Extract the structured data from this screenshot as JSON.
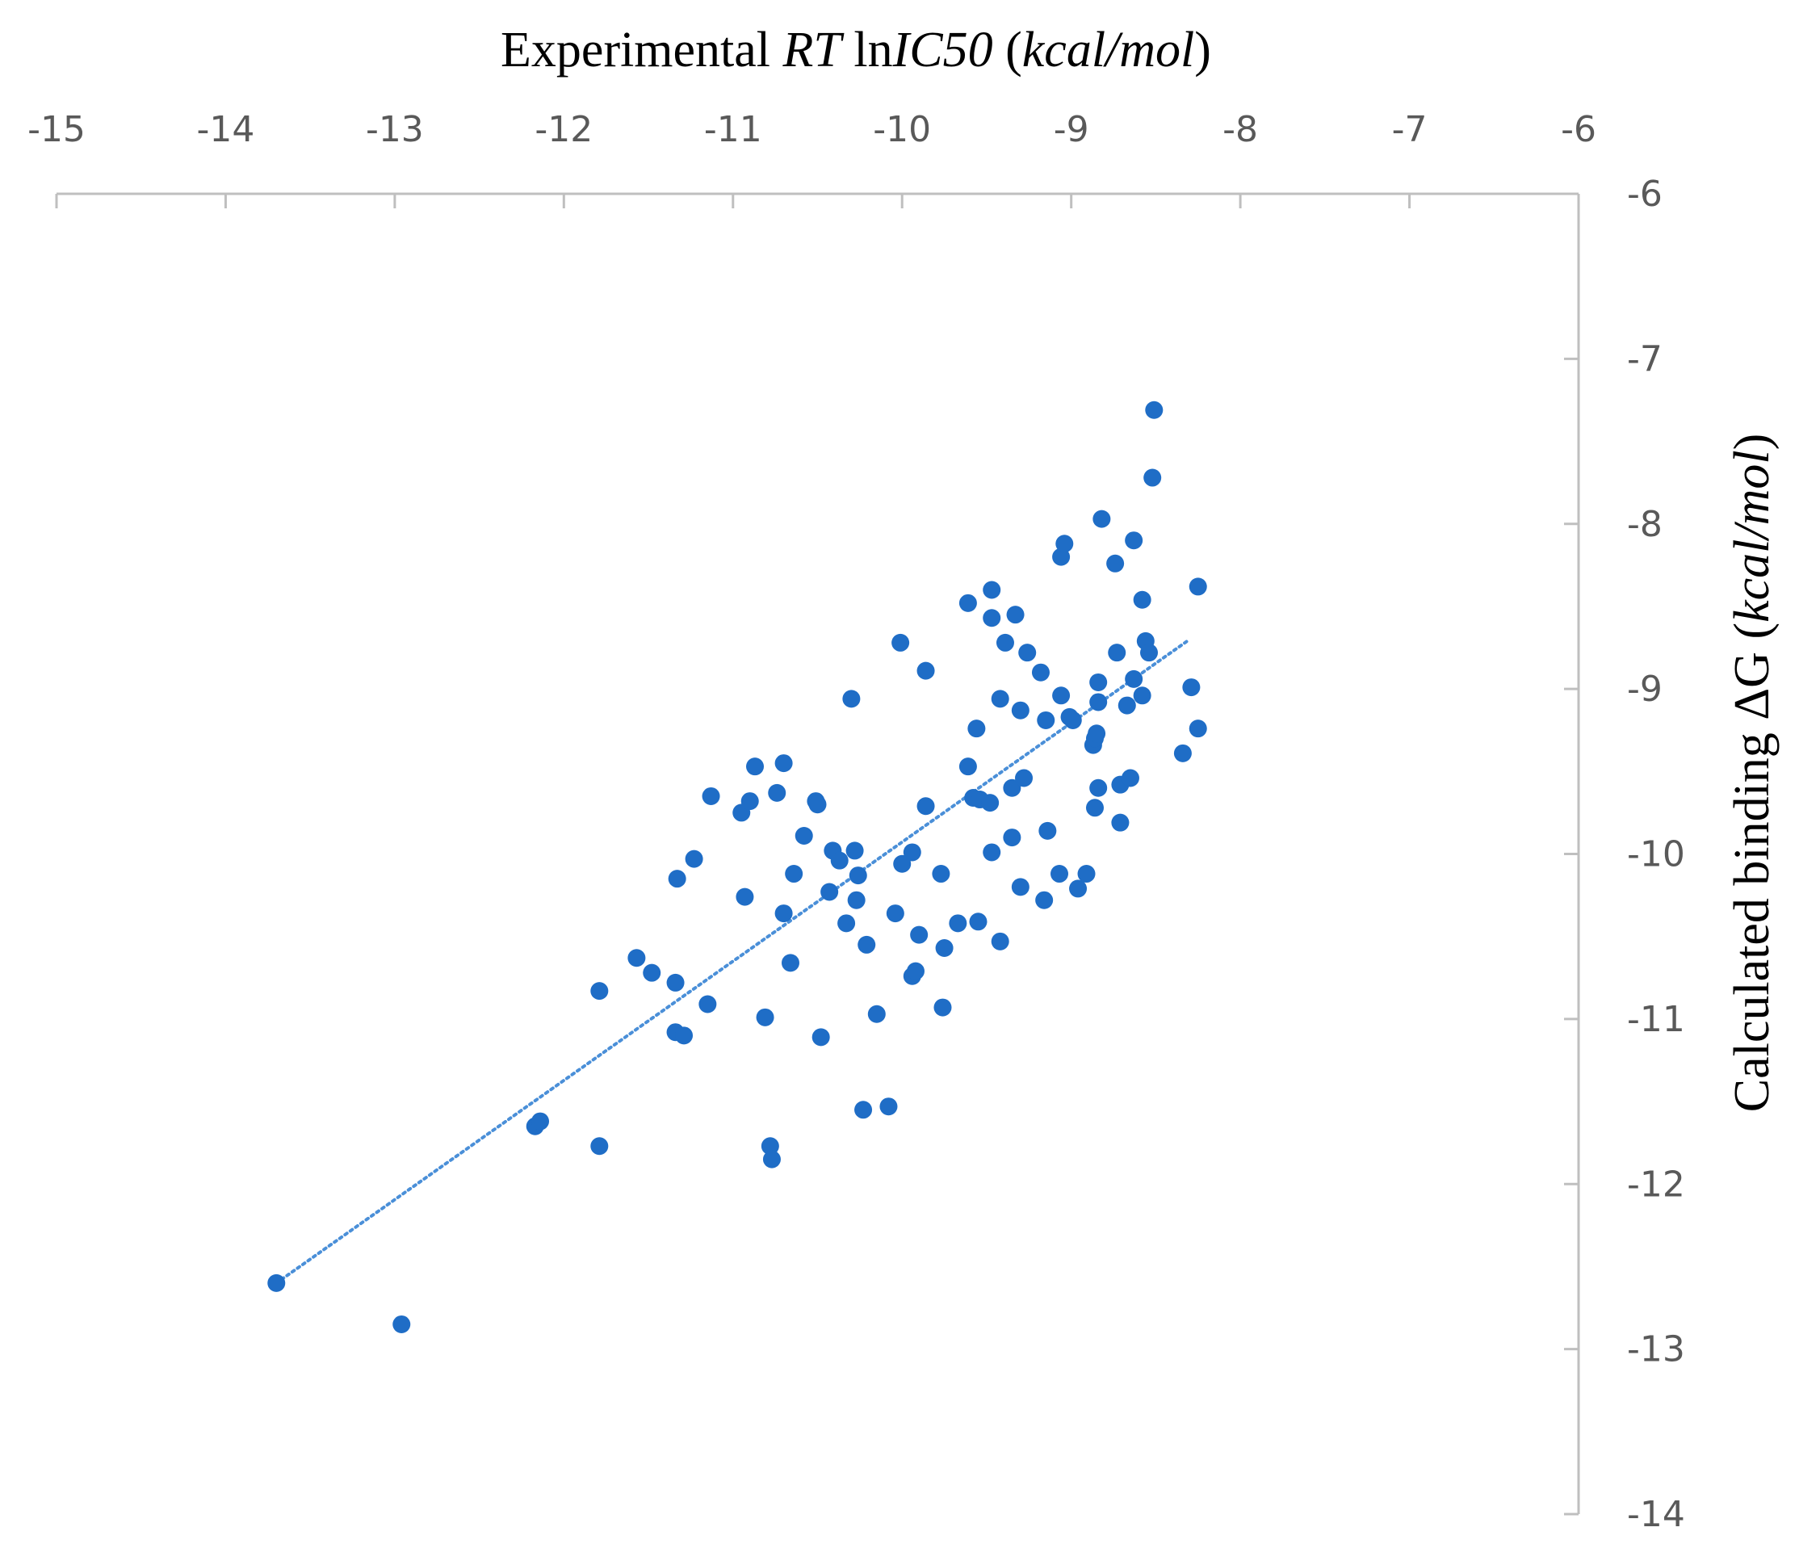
{
  "chart_data": {
    "type": "scatter",
    "x_axis": {
      "title_parts": [
        {
          "text": "Experimental ",
          "italic": false
        },
        {
          "text": "RT",
          "italic": true
        },
        {
          "text": " ln",
          "italic": false
        },
        {
          "text": "IC50",
          "italic": true
        },
        {
          "text": " (",
          "italic": false
        },
        {
          "text": "kcal/mol",
          "italic": true
        },
        {
          "text": ")",
          "italic": false
        }
      ],
      "position": "top",
      "range": [
        -15,
        -6
      ],
      "ticks": [
        -15,
        -14,
        -13,
        -12,
        -11,
        -10,
        -9,
        -8,
        -7,
        -6
      ],
      "tick_labels": [
        "-15",
        "-14",
        "-13",
        "-12",
        "-11",
        "-10",
        "-9",
        "-8",
        "-7",
        "-6"
      ]
    },
    "y_axis": {
      "title_parts": [
        {
          "text": "Calculated binding ΔG (",
          "italic": false
        },
        {
          "text": "kcal/mol",
          "italic": true
        },
        {
          "text": ")",
          "italic": false
        }
      ],
      "position": "right",
      "range": [
        -14,
        -6
      ],
      "ticks": [
        -6,
        -7,
        -8,
        -9,
        -10,
        -11,
        -12,
        -13,
        -14
      ],
      "tick_labels": [
        "-6",
        "-7",
        "-8",
        "-9",
        "-10",
        "-11",
        "-12",
        "-13",
        "-14"
      ]
    },
    "grid": false,
    "legend": "none",
    "marker_color": "#1f6dc6",
    "trendline": {
      "style": "dotted",
      "color": "#4a8fd8",
      "from": [
        -13.7,
        -12.6
      ],
      "to": [
        -8.3,
        -8.7
      ]
    },
    "points": [
      [
        -13.7,
        -12.6
      ],
      [
        -12.96,
        -12.85
      ],
      [
        -12.17,
        -11.65
      ],
      [
        -12.14,
        -11.62
      ],
      [
        -11.79,
        -11.77
      ],
      [
        -11.79,
        -10.83
      ],
      [
        -11.57,
        -10.63
      ],
      [
        -11.48,
        -10.72
      ],
      [
        -11.34,
        -10.78
      ],
      [
        -11.34,
        -11.08
      ],
      [
        -11.29,
        -11.1
      ],
      [
        -11.33,
        -10.15
      ],
      [
        -11.23,
        -10.03
      ],
      [
        -11.13,
        -9.65
      ],
      [
        -11.15,
        -10.91
      ],
      [
        -10.95,
        -9.75
      ],
      [
        -10.93,
        -10.26
      ],
      [
        -10.9,
        -9.68
      ],
      [
        -10.87,
        -9.47
      ],
      [
        -10.81,
        -10.99
      ],
      [
        -10.78,
        -11.77
      ],
      [
        -10.77,
        -11.85
      ],
      [
        -10.74,
        -9.63
      ],
      [
        -10.7,
        -9.45
      ],
      [
        -10.7,
        -10.36
      ],
      [
        -10.66,
        -10.66
      ],
      [
        -10.64,
        -10.12
      ],
      [
        -10.58,
        -9.89
      ],
      [
        -10.51,
        -9.68
      ],
      [
        -10.5,
        -9.7
      ],
      [
        -10.48,
        -11.11
      ],
      [
        -10.43,
        -10.23
      ],
      [
        -10.41,
        -9.98
      ],
      [
        -10.37,
        -10.04
      ],
      [
        -10.33,
        -10.42
      ],
      [
        -10.3,
        -9.06
      ],
      [
        -10.28,
        -9.98
      ],
      [
        -10.26,
        -10.13
      ],
      [
        -10.27,
        -10.28
      ],
      [
        -10.23,
        -11.55
      ],
      [
        -10.21,
        -10.55
      ],
      [
        -10.15,
        -10.97
      ],
      [
        -10.08,
        -11.53
      ],
      [
        -10.04,
        -10.36
      ],
      [
        -10.01,
        -8.72
      ],
      [
        -10.0,
        -10.06
      ],
      [
        -9.94,
        -9.99
      ],
      [
        -9.94,
        -10.74
      ],
      [
        -9.92,
        -10.71
      ],
      [
        -9.9,
        -10.49
      ],
      [
        -9.86,
        -9.71
      ],
      [
        -9.86,
        -8.89
      ],
      [
        -9.77,
        -10.12
      ],
      [
        -9.76,
        -10.93
      ],
      [
        -9.75,
        -10.57
      ],
      [
        -9.67,
        -10.42
      ],
      [
        -9.61,
        -9.47
      ],
      [
        -9.61,
        -8.48
      ],
      [
        -9.58,
        -9.66
      ],
      [
        -9.56,
        -9.24
      ],
      [
        -9.55,
        -10.41
      ],
      [
        -9.54,
        -9.67
      ],
      [
        -9.48,
        -9.69
      ],
      [
        -9.47,
        -8.57
      ],
      [
        -9.47,
        -8.4
      ],
      [
        -9.47,
        -9.99
      ],
      [
        -9.42,
        -10.53
      ],
      [
        -9.42,
        -9.06
      ],
      [
        -9.39,
        -8.72
      ],
      [
        -9.35,
        -9.9
      ],
      [
        -9.35,
        -9.6
      ],
      [
        -9.33,
        -8.55
      ],
      [
        -9.3,
        -9.13
      ],
      [
        -9.3,
        -10.2
      ],
      [
        -9.28,
        -9.54
      ],
      [
        -9.26,
        -8.78
      ],
      [
        -9.18,
        -8.9
      ],
      [
        -9.16,
        -10.28
      ],
      [
        -9.15,
        -9.19
      ],
      [
        -9.14,
        -9.86
      ],
      [
        -9.07,
        -10.12
      ],
      [
        -9.06,
        -9.04
      ],
      [
        -9.06,
        -8.2
      ],
      [
        -9.04,
        -8.12
      ],
      [
        -9.01,
        -9.17
      ],
      [
        -8.99,
        -9.19
      ],
      [
        -8.96,
        -10.21
      ],
      [
        -8.91,
        -10.12
      ],
      [
        -8.87,
        -9.34
      ],
      [
        -8.86,
        -9.3
      ],
      [
        -8.86,
        -9.72
      ],
      [
        -8.85,
        -9.27
      ],
      [
        -8.84,
        -9.08
      ],
      [
        -8.84,
        -8.96
      ],
      [
        -8.84,
        -9.6
      ],
      [
        -8.82,
        -7.97
      ],
      [
        -8.74,
        -8.24
      ],
      [
        -8.73,
        -8.78
      ],
      [
        -8.71,
        -9.58
      ],
      [
        -8.71,
        -9.81
      ],
      [
        -8.67,
        -9.1
      ],
      [
        -8.65,
        -9.54
      ],
      [
        -8.63,
        -8.94
      ],
      [
        -8.63,
        -8.1
      ],
      [
        -8.58,
        -9.04
      ],
      [
        -8.58,
        -8.46
      ],
      [
        -8.56,
        -8.71
      ],
      [
        -8.54,
        -8.78
      ],
      [
        -8.52,
        -7.72
      ],
      [
        -8.51,
        -7.31
      ],
      [
        -8.34,
        -9.39
      ],
      [
        -8.29,
        -8.99
      ],
      [
        -8.25,
        -8.38
      ],
      [
        -8.25,
        -9.24
      ]
    ]
  }
}
